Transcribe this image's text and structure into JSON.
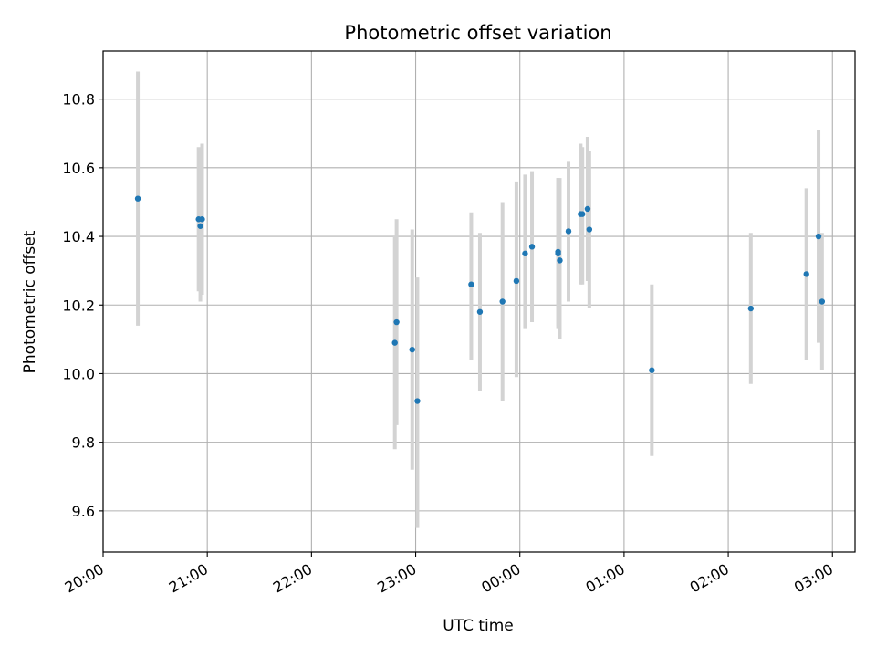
{
  "chart_data": {
    "type": "scatter",
    "title": "Photometric offset variation",
    "xlabel": "UTC time",
    "ylabel": "Photometric offset",
    "x_ticks": [
      "20:00",
      "21:00",
      "22:00",
      "23:00",
      "00:00",
      "01:00",
      "02:00",
      "03:00"
    ],
    "y_ticks": [
      "9.6",
      "9.8",
      "10.0",
      "10.2",
      "10.4",
      "10.6",
      "10.8"
    ],
    "xlim": [
      "20:00",
      "03:13"
    ],
    "ylim": [
      9.48,
      10.94
    ],
    "grid": true,
    "colors": {
      "point": "#1f77b4",
      "errorbar": "#d3d3d3",
      "grid": "#b0b0b0"
    },
    "points": [
      {
        "t": "20:20",
        "y": 10.51,
        "lo": 10.14,
        "hi": 10.88
      },
      {
        "t": "20:55",
        "y": 10.45,
        "lo": 10.24,
        "hi": 10.66
      },
      {
        "t": "20:56",
        "y": 10.43,
        "lo": 10.21,
        "hi": 10.65
      },
      {
        "t": "20:57",
        "y": 10.45,
        "lo": 10.23,
        "hi": 10.67
      },
      {
        "t": "22:48",
        "y": 10.09,
        "lo": 9.78,
        "hi": 10.4
      },
      {
        "t": "22:49",
        "y": 10.15,
        "lo": 9.85,
        "hi": 10.45
      },
      {
        "t": "22:58",
        "y": 10.07,
        "lo": 9.72,
        "hi": 10.42
      },
      {
        "t": "23:01",
        "y": 9.92,
        "lo": 9.55,
        "hi": 10.28
      },
      {
        "t": "23:32",
        "y": 10.26,
        "lo": 10.04,
        "hi": 10.47
      },
      {
        "t": "23:37",
        "y": 10.18,
        "lo": 9.95,
        "hi": 10.41
      },
      {
        "t": "23:50",
        "y": 10.21,
        "lo": 9.92,
        "hi": 10.5
      },
      {
        "t": "23:58",
        "y": 10.27,
        "lo": 9.99,
        "hi": 10.56
      },
      {
        "t": "00:03",
        "y": 10.35,
        "lo": 10.13,
        "hi": 10.58
      },
      {
        "t": "00:07",
        "y": 10.37,
        "lo": 10.15,
        "hi": 10.59
      },
      {
        "t": "00:22",
        "y": 10.355,
        "lo": 10.14,
        "hi": 10.57
      },
      {
        "t": "00:22",
        "y": 10.35,
        "lo": 10.13,
        "hi": 10.57
      },
      {
        "t": "00:23",
        "y": 10.33,
        "lo": 10.1,
        "hi": 10.57
      },
      {
        "t": "00:28",
        "y": 10.415,
        "lo": 10.21,
        "hi": 10.62
      },
      {
        "t": "00:35",
        "y": 10.465,
        "lo": 10.26,
        "hi": 10.67
      },
      {
        "t": "00:36",
        "y": 10.465,
        "lo": 10.26,
        "hi": 10.66
      },
      {
        "t": "00:39",
        "y": 10.48,
        "lo": 10.27,
        "hi": 10.69
      },
      {
        "t": "00:40",
        "y": 10.42,
        "lo": 10.19,
        "hi": 10.65
      },
      {
        "t": "01:16",
        "y": 10.01,
        "lo": 9.76,
        "hi": 10.26
      },
      {
        "t": "02:13",
        "y": 10.19,
        "lo": 9.97,
        "hi": 10.41
      },
      {
        "t": "02:45",
        "y": 10.29,
        "lo": 10.04,
        "hi": 10.54
      },
      {
        "t": "02:52",
        "y": 10.4,
        "lo": 10.09,
        "hi": 10.71
      },
      {
        "t": "02:54",
        "y": 10.21,
        "lo": 10.01,
        "hi": 10.41
      }
    ]
  }
}
